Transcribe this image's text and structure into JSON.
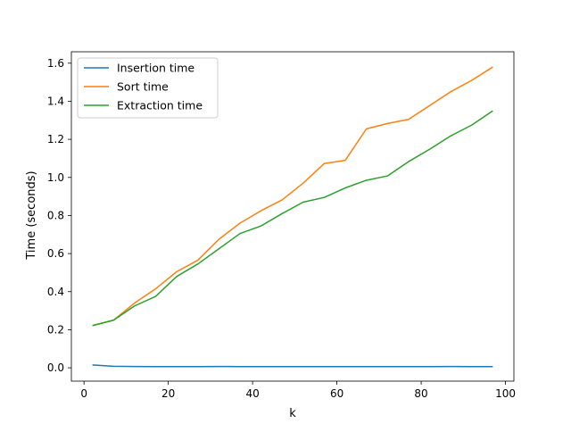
{
  "chart_data": {
    "type": "line",
    "title": "",
    "xlabel": "k",
    "ylabel": "Time (seconds)",
    "xlim": [
      -3,
      102
    ],
    "ylim": [
      -0.07,
      1.66
    ],
    "xticks": [
      0,
      20,
      40,
      60,
      80,
      100
    ],
    "xtick_labels": [
      "0",
      "20",
      "40",
      "60",
      "80",
      "100"
    ],
    "yticks": [
      0.0,
      0.2,
      0.4,
      0.6,
      0.8,
      1.0,
      1.2,
      1.4,
      1.6
    ],
    "ytick_labels": [
      "0.0",
      "0.2",
      "0.4",
      "0.6",
      "0.8",
      "1.0",
      "1.2",
      "1.4",
      "1.6"
    ],
    "grid": false,
    "legend_position": "upper-left",
    "x": [
      2,
      7,
      12,
      17,
      22,
      27,
      32,
      37,
      42,
      47,
      52,
      57,
      62,
      67,
      72,
      77,
      82,
      87,
      92,
      97
    ],
    "series": [
      {
        "name": "Insertion time",
        "color": "#1f77b4",
        "values": [
          0.015,
          0.008,
          0.007,
          0.006,
          0.006,
          0.006,
          0.007,
          0.006,
          0.006,
          0.006,
          0.006,
          0.006,
          0.006,
          0.006,
          0.006,
          0.006,
          0.006,
          0.007,
          0.006,
          0.006
        ]
      },
      {
        "name": "Sort time",
        "color": "#ff7f0e",
        "values": [
          0.222,
          0.25,
          0.34,
          0.415,
          0.505,
          0.565,
          0.675,
          0.76,
          0.825,
          0.882,
          0.97,
          1.073,
          1.09,
          1.255,
          1.283,
          1.305,
          1.377,
          1.45,
          1.51,
          1.58
        ]
      },
      {
        "name": "Extraction time",
        "color": "#2ca02c",
        "values": [
          0.222,
          0.25,
          0.325,
          0.375,
          0.48,
          0.545,
          0.625,
          0.705,
          0.745,
          0.81,
          0.87,
          0.895,
          0.945,
          0.985,
          1.008,
          1.083,
          1.148,
          1.218,
          1.275,
          1.35
        ]
      }
    ]
  }
}
